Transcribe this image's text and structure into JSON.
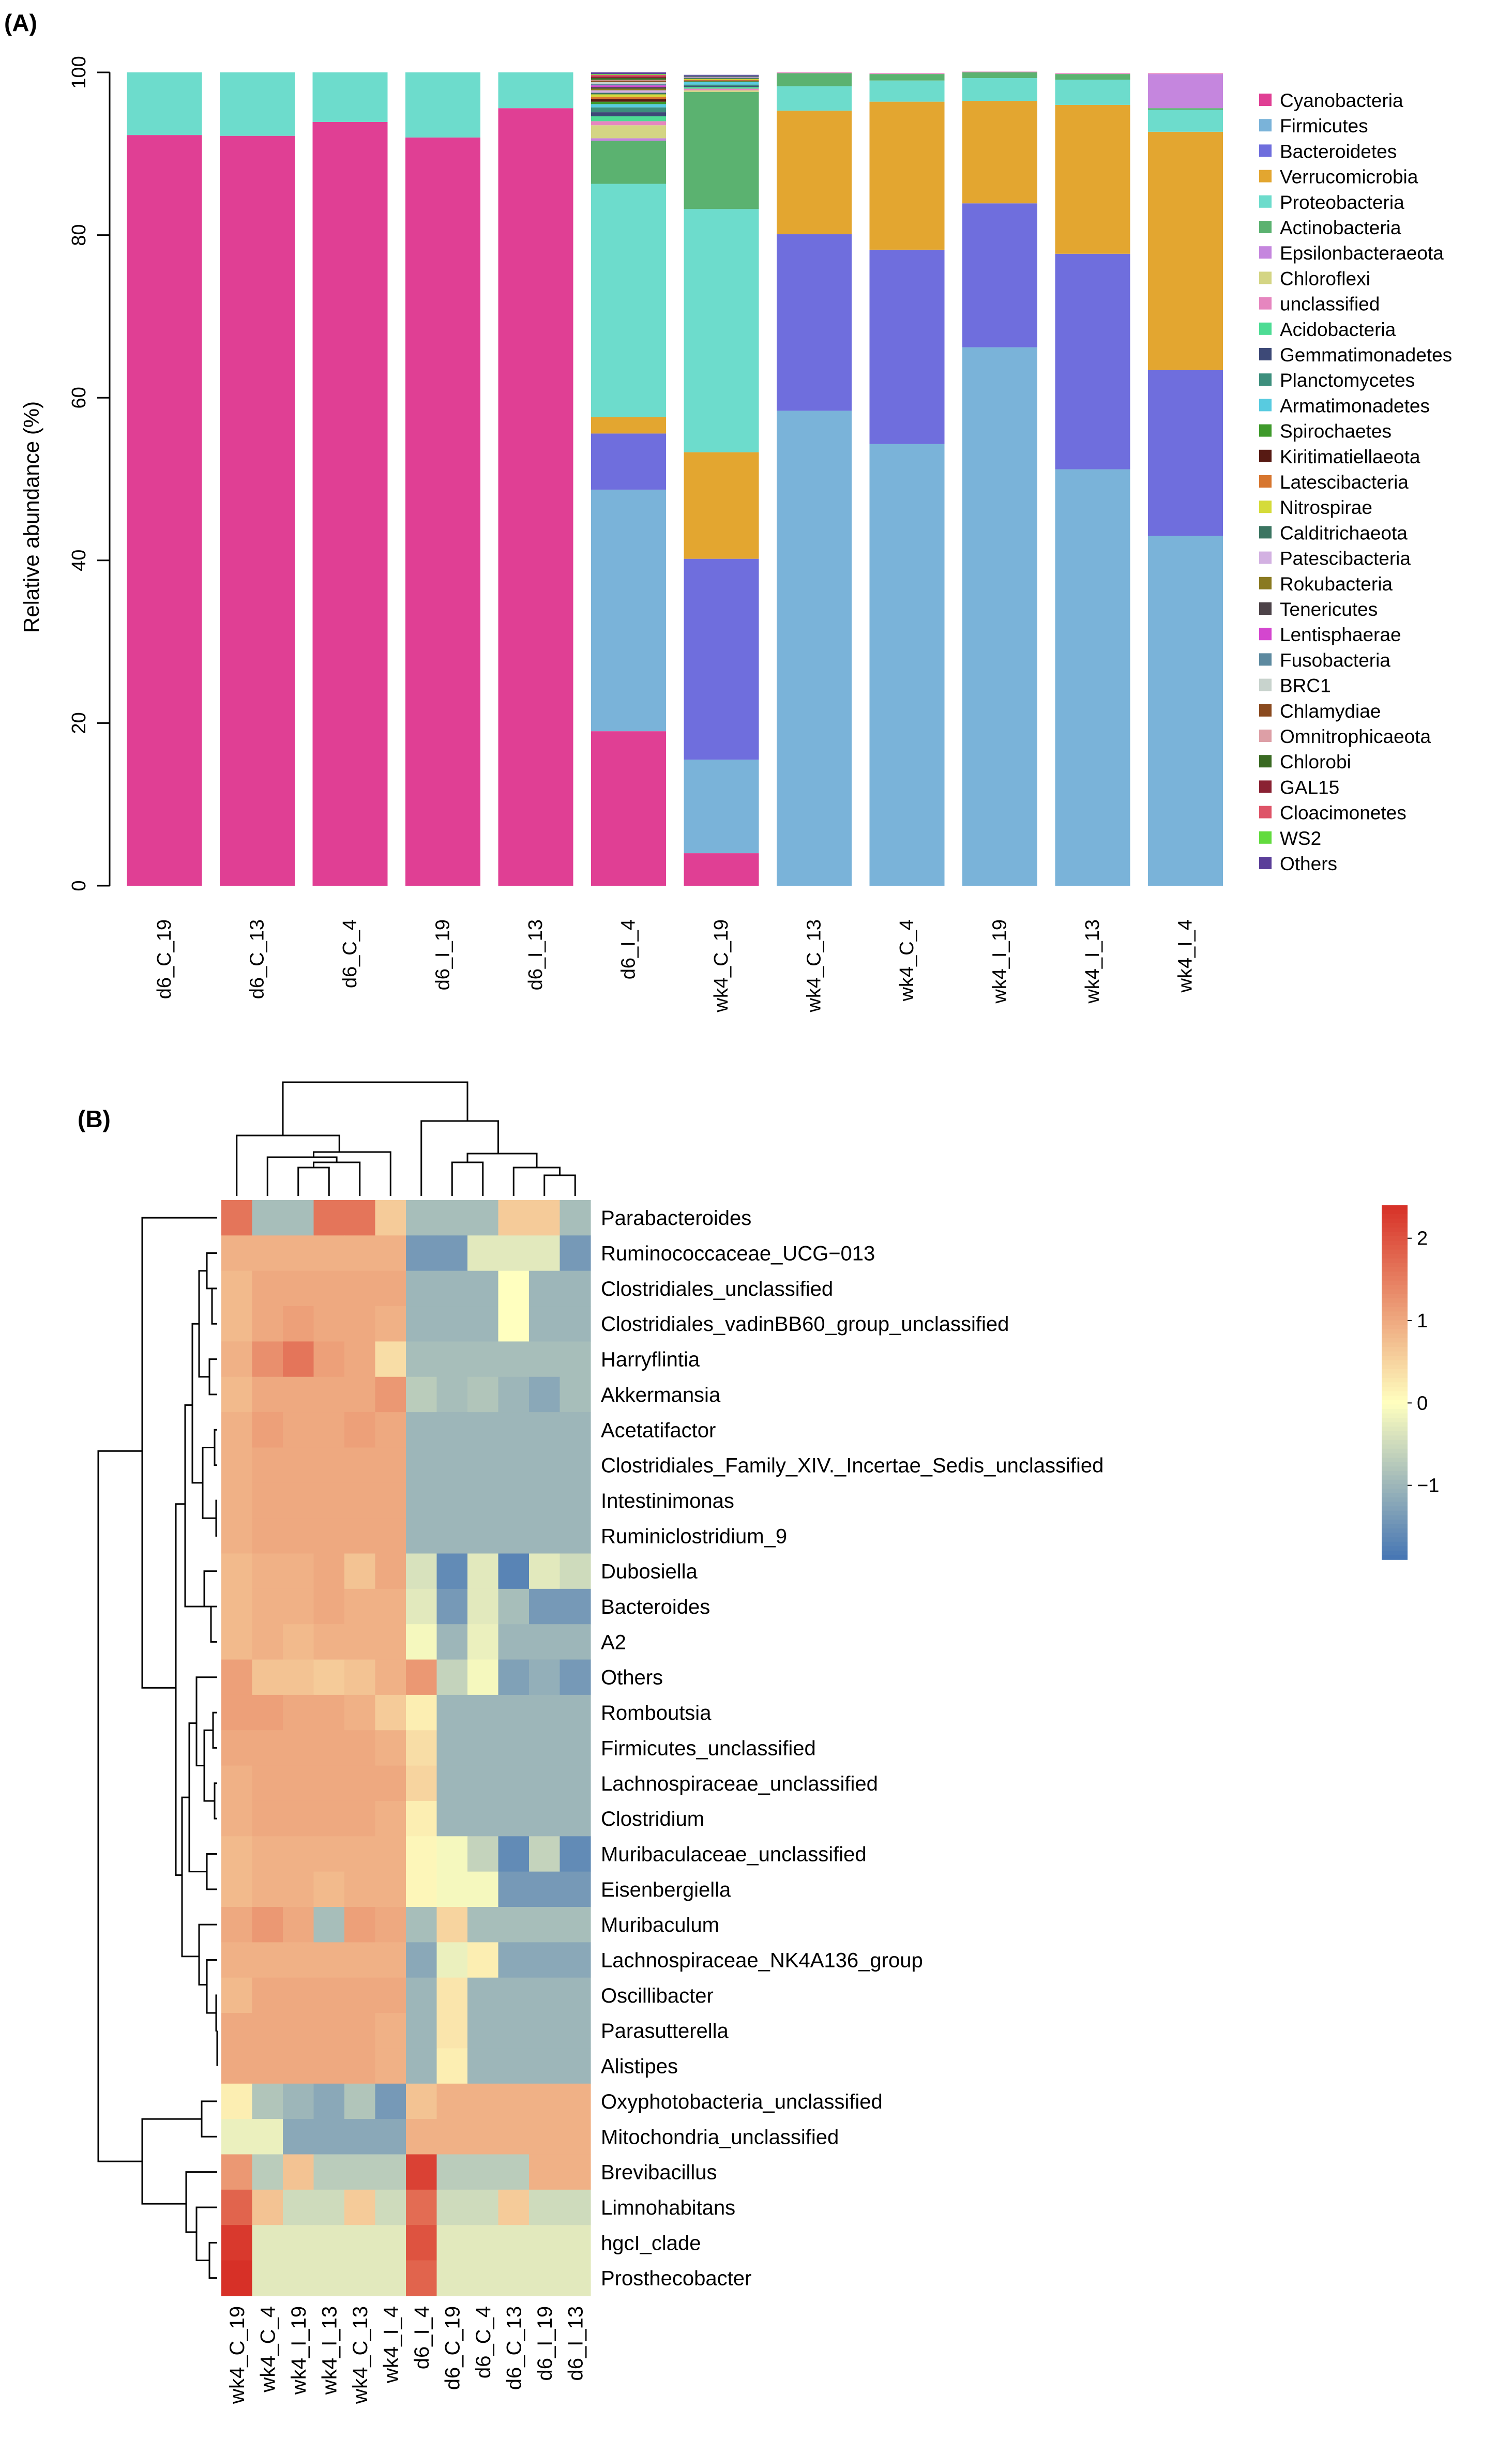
{
  "panel_a": {
    "label": "(A)",
    "chart_data": {
      "type": "bar",
      "stacked": true,
      "title": "",
      "xlabel": "",
      "ylabel": "Relative abundance (%)",
      "ylim": [
        0,
        100
      ],
      "yticks": [
        "0",
        "20",
        "40",
        "60",
        "80",
        "100"
      ],
      "categories": [
        "d6_C_19",
        "d6_C_13",
        "d6_C_4",
        "d6_I_19",
        "d6_I_13",
        "d6_I_4",
        "wk4_C_19",
        "wk4_C_13",
        "wk4_C_4",
        "wk4_I_19",
        "wk4_I_13",
        "wk4_I_4"
      ],
      "legend_position": "right",
      "series": [
        {
          "name": "Cyanobacteria",
          "color": "#e03f94",
          "values": [
            92.3,
            92.2,
            93.9,
            92.0,
            95.6,
            19.0,
            4.0,
            0,
            0,
            0,
            0,
            0
          ]
        },
        {
          "name": "Firmicutes",
          "color": "#7ab3d9",
          "values": [
            0,
            0,
            0,
            0,
            0,
            29.7,
            11.5,
            58.4,
            54.3,
            66.2,
            51.2,
            43.0
          ]
        },
        {
          "name": "Bacteroidetes",
          "color": "#6f6edd",
          "values": [
            0,
            0,
            0,
            0,
            0,
            6.9,
            24.7,
            21.7,
            23.9,
            17.7,
            26.5,
            20.4
          ]
        },
        {
          "name": "Verrucomicrobia",
          "color": "#e3a630",
          "values": [
            0,
            0,
            0,
            0,
            0,
            2.0,
            13.1,
            15.2,
            18.2,
            12.6,
            18.3,
            29.3
          ]
        },
        {
          "name": "Proteobacteria",
          "color": "#6ddccc",
          "values": [
            7.7,
            7.8,
            6.1,
            8.0,
            4.4,
            28.7,
            29.9,
            3.0,
            2.6,
            2.8,
            3.1,
            2.7
          ]
        },
        {
          "name": "Actinobacteria",
          "color": "#5bb270",
          "values": [
            0,
            0,
            0,
            0,
            0,
            5.3,
            14.4,
            1.6,
            0.8,
            0.7,
            0.7,
            0.2
          ]
        },
        {
          "name": "Epsilonbacteraeota",
          "color": "#c586de",
          "values": [
            0,
            0,
            0,
            0,
            0,
            0.3,
            0,
            0,
            0,
            0,
            0,
            4.2
          ]
        },
        {
          "name": "Chloroflexi",
          "color": "#d4d584",
          "values": [
            0,
            0,
            0,
            0,
            0,
            1.6,
            0.2,
            0,
            0,
            0,
            0,
            0
          ]
        },
        {
          "name": "unclassified",
          "color": "#e686bf",
          "values": [
            0,
            0,
            0,
            0,
            0,
            0.5,
            0.2,
            0.1,
            0.1,
            0.1,
            0.1,
            0.1
          ]
        },
        {
          "name": "Acidobacteria",
          "color": "#4ddc94",
          "values": [
            0,
            0,
            0,
            0,
            0,
            0.6,
            0.2,
            0,
            0,
            0,
            0,
            0
          ]
        },
        {
          "name": "Gemmatimonadetes",
          "color": "#3d4977",
          "values": [
            0,
            0,
            0,
            0,
            0,
            0.5,
            0.1,
            0,
            0,
            0,
            0,
            0
          ]
        },
        {
          "name": "Planctomycetes",
          "color": "#3d8f7d",
          "values": [
            0,
            0,
            0,
            0,
            0,
            0.6,
            0.2,
            0,
            0,
            0,
            0,
            0
          ]
        },
        {
          "name": "Armatimonadetes",
          "color": "#58cbe0",
          "values": [
            0,
            0,
            0,
            0,
            0,
            0.4,
            0.3,
            0,
            0,
            0,
            0,
            0
          ]
        },
        {
          "name": "Spirochaetes",
          "color": "#3f9a2c",
          "values": [
            0,
            0,
            0,
            0,
            0,
            0.3,
            0.1,
            0,
            0,
            0,
            0,
            0
          ]
        },
        {
          "name": "Kiritimatiellaeota",
          "color": "#571a13",
          "values": [
            0,
            0,
            0,
            0,
            0,
            0.3,
            0.1,
            0,
            0,
            0,
            0,
            0
          ]
        },
        {
          "name": "Latescibacteria",
          "color": "#d7762f",
          "values": [
            0,
            0,
            0,
            0,
            0,
            0.3,
            0.1,
            0,
            0,
            0,
            0,
            0
          ]
        },
        {
          "name": "Nitrospirae",
          "color": "#d5db3a",
          "values": [
            0,
            0,
            0,
            0,
            0,
            0.3,
            0.1,
            0,
            0,
            0,
            0,
            0
          ]
        },
        {
          "name": "Calditrichaeota",
          "color": "#3b7561",
          "values": [
            0,
            0,
            0,
            0,
            0,
            0.2,
            0.1,
            0,
            0,
            0,
            0,
            0
          ]
        },
        {
          "name": "Patescibacteria",
          "color": "#d3b1e2",
          "values": [
            0,
            0,
            0,
            0,
            0,
            0.3,
            0.1,
            0,
            0,
            0,
            0,
            0
          ]
        },
        {
          "name": "Rokubacteria",
          "color": "#8a7a21",
          "values": [
            0,
            0,
            0,
            0,
            0,
            0.2,
            0,
            0,
            0,
            0,
            0,
            0
          ]
        },
        {
          "name": "Tenericutes",
          "color": "#4d4349",
          "values": [
            0,
            0,
            0,
            0,
            0,
            0.2,
            0.1,
            0,
            0,
            0,
            0,
            0
          ]
        },
        {
          "name": "Lentisphaerae",
          "color": "#d446cf",
          "values": [
            0,
            0,
            0,
            0,
            0,
            0.2,
            0,
            0,
            0,
            0,
            0,
            0
          ]
        },
        {
          "name": "Fusobacteria",
          "color": "#5d8aa0",
          "values": [
            0,
            0,
            0,
            0,
            0,
            0.2,
            0.1,
            0,
            0,
            0,
            0,
            0
          ]
        },
        {
          "name": "BRC1",
          "color": "#c8d3cd",
          "values": [
            0,
            0,
            0,
            0,
            0,
            0.2,
            0,
            0,
            0,
            0,
            0,
            0
          ]
        },
        {
          "name": "Chlamydiae",
          "color": "#8a4a1f",
          "values": [
            0,
            0,
            0,
            0,
            0,
            0.2,
            0,
            0,
            0,
            0,
            0,
            0
          ]
        },
        {
          "name": "Omnitrophicaeota",
          "color": "#dd9fa6",
          "values": [
            0,
            0,
            0,
            0,
            0,
            0.1,
            0,
            0,
            0,
            0,
            0,
            0
          ]
        },
        {
          "name": "Chlorobi",
          "color": "#3a6a23",
          "values": [
            0,
            0,
            0,
            0,
            0,
            0.2,
            0,
            0,
            0,
            0,
            0,
            0
          ]
        },
        {
          "name": "GAL15",
          "color": "#8a2233",
          "values": [
            0,
            0,
            0,
            0,
            0,
            0.2,
            0,
            0,
            0,
            0,
            0,
            0
          ]
        },
        {
          "name": "Cloacimonetes",
          "color": "#de5468",
          "values": [
            0,
            0,
            0,
            0,
            0,
            0.2,
            0,
            0,
            0,
            0,
            0,
            0
          ]
        },
        {
          "name": "WS2",
          "color": "#62db3e",
          "values": [
            0,
            0,
            0,
            0,
            0,
            0.1,
            0,
            0,
            0,
            0,
            0,
            0
          ]
        },
        {
          "name": "Others",
          "color": "#5b3f99",
          "values": [
            0,
            0,
            0,
            0,
            0,
            0.2,
            0.1,
            0,
            0,
            0,
            0,
            0
          ]
        }
      ]
    }
  },
  "panel_b": {
    "label": "(B)",
    "chart_data": {
      "type": "heatmap",
      "title": "",
      "columns": [
        "wk4_C_19",
        "wk4_C_4",
        "wk4_I_19",
        "wk4_I_13",
        "wk4_C_13",
        "wk4_I_4",
        "d6_I_4",
        "d6_C_19",
        "d6_C_4",
        "d6_C_13",
        "d6_I_19",
        "d6_I_13"
      ],
      "rows": [
        "Parabacteroides",
        "Ruminococcaceae_UCG−013",
        "Clostridiales_unclassified",
        "Clostridiales_vadinBB60_group_unclassified",
        "Harryflintia",
        "Akkermansia",
        "Acetatifactor",
        "Clostridiales_Family_XIV._Incertae_Sedis_unclassified",
        "Intestinimonas",
        "Ruminiclostridium_9",
        "Dubosiella",
        "Bacteroides",
        "A2",
        "Others",
        "Romboutsia",
        "Firmicutes_unclassified",
        "Lachnospiraceae_unclassified",
        "Clostridium",
        "Muribaculaceae_unclassified",
        "Eisenbergiella",
        "Muribaculum",
        "Lachnospiraceae_NK4A136_group",
        "Oscillibacter",
        "Parasutterella",
        "Alistipes",
        "Oxyphotobacteria_unclassified",
        "Mitochondria_unclassified",
        "Brevibacillus",
        "Limnohabitans",
        "hgcI_clade",
        "Prosthecobacter"
      ],
      "values": [
        [
          1.6,
          -0.9,
          -0.9,
          1.6,
          1.6,
          0.6,
          -0.9,
          -0.9,
          -0.9,
          0.6,
          0.6,
          -0.9
        ],
        [
          0.9,
          0.9,
          0.9,
          0.9,
          0.9,
          0.9,
          -1.4,
          -1.4,
          -0.3,
          -0.3,
          -0.3,
          -1.4
        ],
        [
          0.8,
          1.0,
          1.0,
          1.0,
          1.0,
          1.0,
          -1.0,
          -1.0,
          -1.0,
          0.0,
          -1.0,
          -1.0
        ],
        [
          0.8,
          1.0,
          1.1,
          1.0,
          1.0,
          0.9,
          -1.0,
          -1.0,
          -1.0,
          0.0,
          -1.0,
          -1.0
        ],
        [
          0.9,
          1.3,
          1.6,
          1.1,
          1.0,
          0.4,
          -0.9,
          -0.9,
          -0.9,
          -0.9,
          -0.9,
          -0.9
        ],
        [
          0.8,
          1.0,
          1.0,
          1.0,
          1.0,
          1.2,
          -0.7,
          -0.9,
          -0.8,
          -1.0,
          -1.2,
          -0.9
        ],
        [
          0.9,
          1.1,
          1.0,
          1.0,
          1.1,
          1.0,
          -1.0,
          -1.0,
          -1.0,
          -1.0,
          -1.0,
          -1.0
        ],
        [
          0.9,
          1.0,
          1.0,
          1.0,
          1.0,
          1.0,
          -1.0,
          -1.0,
          -1.0,
          -1.0,
          -1.0,
          -1.0
        ],
        [
          0.9,
          1.0,
          1.0,
          1.0,
          1.0,
          1.0,
          -1.0,
          -1.0,
          -1.0,
          -1.0,
          -1.0,
          -1.0
        ],
        [
          0.9,
          1.0,
          1.0,
          1.0,
          1.0,
          1.0,
          -1.0,
          -1.0,
          -1.0,
          -1.0,
          -1.0,
          -1.0
        ],
        [
          0.8,
          0.9,
          0.9,
          1.0,
          0.7,
          1.0,
          -0.4,
          -1.6,
          -0.3,
          -1.7,
          -0.3,
          -0.5
        ],
        [
          0.8,
          0.9,
          0.9,
          1.0,
          0.9,
          0.9,
          -0.3,
          -1.4,
          -0.3,
          -0.9,
          -1.4,
          -1.4
        ],
        [
          0.8,
          0.9,
          0.8,
          0.9,
          0.9,
          0.9,
          -0.1,
          -1.0,
          -0.2,
          -1.0,
          -1.0,
          -1.0
        ],
        [
          1.1,
          0.7,
          0.7,
          0.6,
          0.7,
          0.9,
          1.2,
          -0.6,
          -0.1,
          -1.3,
          -1.1,
          -1.4
        ],
        [
          1.1,
          1.1,
          1.0,
          1.0,
          0.9,
          0.6,
          0.2,
          -1.0,
          -1.0,
          -1.0,
          -1.0,
          -1.0
        ],
        [
          1.0,
          1.0,
          1.0,
          1.0,
          1.0,
          0.9,
          0.4,
          -1.0,
          -1.0,
          -1.0,
          -1.0,
          -1.0
        ],
        [
          0.9,
          1.0,
          1.0,
          1.0,
          1.0,
          1.0,
          0.5,
          -1.0,
          -1.0,
          -1.0,
          -1.0,
          -1.0
        ],
        [
          0.9,
          1.0,
          1.0,
          1.0,
          1.0,
          0.9,
          0.2,
          -1.0,
          -1.0,
          -1.0,
          -1.0,
          -1.0
        ],
        [
          0.8,
          0.9,
          0.9,
          0.9,
          0.9,
          0.9,
          0.1,
          -0.1,
          -0.6,
          -1.6,
          -0.6,
          -1.6
        ],
        [
          0.8,
          0.9,
          0.9,
          0.8,
          0.9,
          0.9,
          0.1,
          -0.1,
          -0.1,
          -1.4,
          -1.4,
          -1.4
        ],
        [
          1.0,
          1.2,
          1.0,
          -0.9,
          1.1,
          1.0,
          -0.9,
          0.5,
          -0.9,
          -0.9,
          -0.9,
          -0.9
        ],
        [
          0.9,
          0.9,
          0.9,
          0.9,
          0.9,
          0.9,
          -1.2,
          -0.2,
          0.2,
          -1.2,
          -1.2,
          -1.2
        ],
        [
          0.8,
          1.0,
          1.0,
          1.0,
          1.0,
          1.0,
          -1.0,
          0.3,
          -1.0,
          -1.0,
          -1.0,
          -1.0
        ],
        [
          1.0,
          1.0,
          1.0,
          1.0,
          1.0,
          0.9,
          -1.0,
          0.3,
          -1.0,
          -1.0,
          -1.0,
          -1.0
        ],
        [
          1.0,
          1.0,
          1.0,
          1.0,
          1.0,
          0.9,
          -1.0,
          0.2,
          -1.0,
          -1.0,
          -1.0,
          -1.0
        ],
        [
          0.2,
          -0.8,
          -1.0,
          -1.2,
          -0.8,
          -1.4,
          0.7,
          0.9,
          0.9,
          0.9,
          0.9,
          0.9
        ],
        [
          -0.2,
          -0.2,
          -1.2,
          -1.2,
          -1.2,
          -1.2,
          0.9,
          0.9,
          0.9,
          0.9,
          0.9,
          0.9
        ],
        [
          1.2,
          -0.7,
          0.7,
          -0.7,
          -0.7,
          -0.7,
          2.2,
          -0.7,
          -0.7,
          -0.7,
          0.9,
          0.9
        ],
        [
          1.8,
          0.7,
          -0.5,
          -0.5,
          0.6,
          -0.5,
          1.7,
          -0.5,
          -0.5,
          0.6,
          -0.5,
          -0.5
        ],
        [
          2.3,
          -0.3,
          -0.3,
          -0.3,
          -0.3,
          -0.3,
          2.0,
          -0.3,
          -0.3,
          -0.3,
          -0.3,
          -0.3
        ],
        [
          2.5,
          -0.3,
          -0.3,
          -0.3,
          -0.3,
          -0.3,
          1.8,
          -0.3,
          -0.3,
          -0.3,
          -0.3,
          -0.3
        ]
      ],
      "color_scale": {
        "range": [
          -1.9,
          2.4
        ],
        "ticks": [
          "2",
          "1",
          "0",
          "−1"
        ],
        "tick_values": [
          2,
          1,
          0,
          -1
        ],
        "low_color": "#4575b4",
        "mid_color": "#ffffbf",
        "high_color": "#d73027"
      },
      "legend_position": "top-right",
      "dendrograms": [
        "columns",
        "rows"
      ]
    }
  }
}
